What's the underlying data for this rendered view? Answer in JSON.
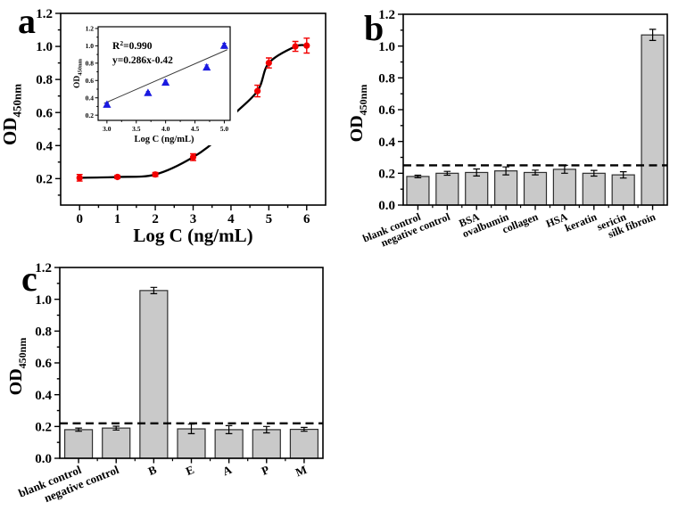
{
  "figure": {
    "background": "#ffffff",
    "axis_color": "#000000",
    "bar_fill": "#c9c9c9",
    "bar_edge": "#2e2e2e",
    "marker_red": "#f20000",
    "marker_blue": "#1a1ae0"
  },
  "chart_data": [
    {
      "id": "a",
      "type": "line",
      "label": "a",
      "xlabel": "Log C (ng/mL)",
      "ylabel": "OD",
      "ylabel_sub": "450nm",
      "xlim": [
        -0.5,
        6.5
      ],
      "ylim": [
        0.04,
        1.2
      ],
      "grid": false,
      "xticks": {
        "values": [
          0,
          1,
          2,
          3,
          4,
          5,
          6
        ],
        "labels": [
          "0",
          "1",
          "2",
          "3",
          "4",
          "5",
          "6"
        ],
        "minor": [
          0.5,
          1.5,
          2.5,
          3.5,
          4.5,
          5.5
        ]
      },
      "yticks": {
        "values": [
          0.2,
          0.4,
          0.6,
          0.8,
          1.0,
          1.2
        ],
        "labels": [
          "0.2",
          "0.4",
          "0.6",
          "0.8",
          "1.0",
          "1.2"
        ],
        "minor": [
          0.1,
          0.3,
          0.5,
          0.7,
          0.9,
          1.1
        ]
      },
      "series": [
        {
          "name": "standard-curve-points",
          "marker": "circle",
          "color": "#f20000",
          "x": [
            0,
            1,
            2,
            3,
            3.7,
            4,
            4.7,
            5,
            5.7,
            6
          ],
          "y": [
            0.205,
            0.21,
            0.225,
            0.33,
            0.455,
            0.57,
            0.73,
            0.9,
            1.0,
            1.005
          ],
          "err": [
            0.02,
            0.01,
            0.012,
            0.02,
            0.03,
            0.05,
            0.035,
            0.03,
            0.03,
            0.045
          ]
        }
      ],
      "curve_color": "#000000",
      "inset": {
        "type": "scatter",
        "annotations": {
          "r2_base": "R",
          "r2_sup": "2",
          "r2_rest": "=0.990",
          "equation": "y=0.286x-0.42"
        },
        "xlabel": "Log C (ng/mL)",
        "ylabel": "OD",
        "ylabel_sub": "450nm",
        "xlim": [
          2.85,
          5.1
        ],
        "ylim": [
          0.14,
          1.22
        ],
        "xticks": {
          "values": [
            3.0,
            3.5,
            4.0,
            4.5,
            5.0
          ],
          "labels": [
            "3.0",
            "3.5",
            "4.0",
            "4.5",
            "5.0"
          ],
          "minor": [
            3.25,
            3.75,
            4.25,
            4.75
          ]
        },
        "yticks": {
          "values": [
            0.2,
            0.4,
            0.6,
            0.8,
            1.0,
            1.2
          ],
          "labels": [
            "0.2",
            "0.4",
            "0.6",
            "0.8",
            "1.0",
            "1.2"
          ],
          "minor": [
            0.3,
            0.5,
            0.7,
            0.9,
            1.1
          ]
        },
        "series": [
          {
            "name": "linear-fit-points",
            "marker": "triangle",
            "color": "#1a1ae0",
            "x": [
              3.0,
              3.7,
              4.0,
              4.7,
              5.0
            ],
            "y": [
              0.32,
              0.455,
              0.575,
              0.75,
              1.0
            ],
            "err": [
              0.025,
              0.02,
              0.03,
              0.03,
              0.03
            ]
          }
        ],
        "fit_line": {
          "x1": 2.95,
          "y1": 0.335,
          "x2": 5.05,
          "y2": 0.955,
          "color": "#3a3a3a"
        }
      }
    },
    {
      "id": "b",
      "type": "bar",
      "label": "b",
      "ylabel": "OD",
      "ylabel_sub": "450nm",
      "ylim": [
        0,
        1.2
      ],
      "grid": false,
      "yticks": {
        "values": [
          0.0,
          0.2,
          0.4,
          0.6,
          0.8,
          1.0,
          1.2
        ],
        "labels": [
          "0.0",
          "0.2",
          "0.4",
          "0.6",
          "0.8",
          "1.0",
          "1.2"
        ],
        "minor": [
          0.1,
          0.3,
          0.5,
          0.7,
          0.9,
          1.1
        ]
      },
      "categories": [
        "blank control",
        "negative control",
        "BSA",
        "ovalbumin",
        "collagen",
        "HSA",
        "keratin",
        "sericin",
        "silk fibroin"
      ],
      "values": [
        0.18,
        0.2,
        0.205,
        0.215,
        0.205,
        0.225,
        0.2,
        0.19,
        1.07
      ],
      "errors": [
        0.008,
        0.012,
        0.022,
        0.025,
        0.015,
        0.025,
        0.018,
        0.02,
        0.035
      ],
      "threshold": 0.25,
      "bar_fill": "#c9c9c9",
      "bar_edge": "#2e2e2e"
    },
    {
      "id": "c",
      "type": "bar",
      "label": "c",
      "ylabel": "OD",
      "ylabel_sub": "450nm",
      "ylim": [
        0,
        1.2
      ],
      "grid": false,
      "yticks": {
        "values": [
          0.0,
          0.2,
          0.4,
          0.6,
          0.8,
          1.0,
          1.2
        ],
        "labels": [
          "0.0",
          "0.2",
          "0.4",
          "0.6",
          "0.8",
          "1.0",
          "1.2"
        ],
        "minor": [
          0.1,
          0.3,
          0.5,
          0.7,
          0.9,
          1.1
        ]
      },
      "categories": [
        "blank control",
        "negative control",
        "B",
        "E",
        "A",
        "P",
        "M"
      ],
      "values": [
        0.18,
        0.19,
        1.055,
        0.185,
        0.18,
        0.18,
        0.182
      ],
      "errors": [
        0.01,
        0.012,
        0.02,
        0.03,
        0.025,
        0.02,
        0.012
      ],
      "threshold": 0.22,
      "bar_fill": "#c9c9c9",
      "bar_edge": "#2e2e2e"
    }
  ]
}
